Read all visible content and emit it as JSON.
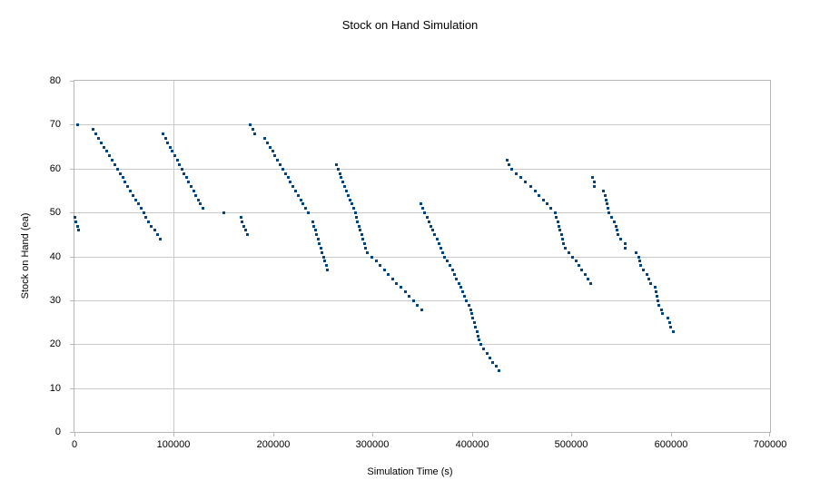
{
  "title": "Stock on Hand Simulation",
  "colors": {
    "background": "#ffffff",
    "point": "#004586",
    "gridline": "#c9c9c9",
    "axis": "#b7b7b7",
    "text": "#000000"
  },
  "chart_data": {
    "type": "scatter",
    "title": "Stock on Hand Simulation",
    "xlabel": "Simulation Time (s)",
    "ylabel": "Stock on Hand (ea)",
    "xlim": [
      0,
      700000
    ],
    "ylim": [
      0,
      80
    ],
    "x_ticks": [
      0,
      100000,
      200000,
      300000,
      400000,
      500000,
      600000,
      700000
    ],
    "y_ticks": [
      0,
      10,
      20,
      30,
      40,
      50,
      60,
      70,
      80
    ],
    "grid": "horizontal major gridlines every 10; faint vertical line at x=100000; plot area framed",
    "legend": "none",
    "marker": "small square, points only, no connecting lines",
    "vlines": [
      100000
    ],
    "series": [
      {
        "name": "Stock on Hand",
        "points": [
          [
            0,
            49
          ],
          [
            900,
            48
          ],
          [
            2300,
            47
          ],
          [
            2700,
            70
          ],
          [
            3700,
            46
          ],
          [
            18300,
            69
          ],
          [
            21000,
            68
          ],
          [
            23700,
            67
          ],
          [
            26400,
            66
          ],
          [
            29100,
            65
          ],
          [
            31800,
            64
          ],
          [
            34500,
            63
          ],
          [
            37200,
            62
          ],
          [
            39900,
            61
          ],
          [
            42600,
            60
          ],
          [
            45300,
            59
          ],
          [
            48000,
            58
          ],
          [
            50700,
            57
          ],
          [
            53400,
            56
          ],
          [
            56100,
            55
          ],
          [
            58800,
            54
          ],
          [
            61500,
            53
          ],
          [
            64200,
            52
          ],
          [
            66900,
            51
          ],
          [
            69600,
            50
          ],
          [
            71300,
            49
          ],
          [
            74200,
            48
          ],
          [
            77100,
            47
          ],
          [
            80000,
            46
          ],
          [
            82900,
            45
          ],
          [
            85800,
            44
          ],
          [
            88900,
            68
          ],
          [
            91200,
            67
          ],
          [
            93600,
            66
          ],
          [
            95900,
            65
          ],
          [
            98200,
            64
          ],
          [
            100600,
            63
          ],
          [
            102900,
            62
          ],
          [
            105300,
            61
          ],
          [
            107600,
            60
          ],
          [
            109900,
            59
          ],
          [
            112300,
            58
          ],
          [
            114600,
            57
          ],
          [
            117000,
            56
          ],
          [
            119300,
            55
          ],
          [
            121600,
            54
          ],
          [
            124000,
            53
          ],
          [
            126300,
            52
          ],
          [
            128600,
            51
          ],
          [
            149900,
            50
          ],
          [
            166900,
            49
          ],
          [
            168400,
            48
          ],
          [
            170000,
            47
          ],
          [
            172100,
            46
          ],
          [
            173900,
            45
          ],
          [
            176100,
            70
          ],
          [
            178700,
            69
          ],
          [
            181200,
            68
          ],
          [
            191300,
            67
          ],
          [
            193900,
            66
          ],
          [
            196400,
            65
          ],
          [
            199000,
            64
          ],
          [
            201500,
            63
          ],
          [
            204100,
            62
          ],
          [
            206700,
            61
          ],
          [
            209200,
            60
          ],
          [
            211800,
            59
          ],
          [
            214300,
            58
          ],
          [
            216900,
            57
          ],
          [
            219500,
            56
          ],
          [
            222000,
            55
          ],
          [
            224600,
            54
          ],
          [
            227100,
            53
          ],
          [
            229700,
            52
          ],
          [
            232300,
            51
          ],
          [
            234800,
            50
          ],
          [
            239100,
            48
          ],
          [
            240500,
            47
          ],
          [
            241900,
            46
          ],
          [
            243200,
            45
          ],
          [
            244600,
            44
          ],
          [
            246000,
            43
          ],
          [
            247400,
            42
          ],
          [
            248800,
            41
          ],
          [
            250100,
            40
          ],
          [
            251500,
            39
          ],
          [
            252900,
            38
          ],
          [
            254300,
            37
          ],
          [
            262900,
            61
          ],
          [
            264700,
            60
          ],
          [
            266400,
            59
          ],
          [
            268200,
            58
          ],
          [
            270000,
            57
          ],
          [
            271700,
            56
          ],
          [
            273500,
            55
          ],
          [
            275300,
            54
          ],
          [
            277000,
            53
          ],
          [
            278800,
            52
          ],
          [
            280600,
            51
          ],
          [
            282400,
            50
          ],
          [
            283000,
            49
          ],
          [
            284400,
            48
          ],
          [
            285800,
            47
          ],
          [
            287100,
            46
          ],
          [
            288500,
            45
          ],
          [
            289900,
            44
          ],
          [
            291200,
            43
          ],
          [
            292600,
            42
          ],
          [
            294000,
            41
          ],
          [
            299100,
            40
          ],
          [
            303200,
            39
          ],
          [
            307400,
            38
          ],
          [
            311500,
            37
          ],
          [
            315700,
            36
          ],
          [
            319800,
            35
          ],
          [
            323900,
            34
          ],
          [
            328100,
            33
          ],
          [
            332200,
            32
          ],
          [
            336400,
            31
          ],
          [
            340500,
            30
          ],
          [
            344600,
            29
          ],
          [
            348800,
            28
          ],
          [
            348200,
            52
          ],
          [
            350200,
            51
          ],
          [
            352200,
            50
          ],
          [
            354200,
            49
          ],
          [
            356200,
            48
          ],
          [
            358200,
            47
          ],
          [
            360200,
            46
          ],
          [
            362200,
            45
          ],
          [
            364200,
            44
          ],
          [
            366200,
            43
          ],
          [
            368200,
            42
          ],
          [
            370200,
            41
          ],
          [
            372200,
            40
          ],
          [
            374700,
            39
          ],
          [
            377200,
            38
          ],
          [
            379700,
            37
          ],
          [
            382200,
            36
          ],
          [
            384200,
            35
          ],
          [
            386200,
            34
          ],
          [
            388200,
            33
          ],
          [
            390200,
            32
          ],
          [
            392200,
            31
          ],
          [
            394200,
            30
          ],
          [
            396200,
            29
          ],
          [
            398100,
            28
          ],
          [
            399400,
            27
          ],
          [
            400700,
            26
          ],
          [
            401900,
            25
          ],
          [
            403200,
            24
          ],
          [
            404500,
            23
          ],
          [
            405700,
            22
          ],
          [
            407000,
            21
          ],
          [
            408200,
            20
          ],
          [
            411300,
            19
          ],
          [
            414500,
            18
          ],
          [
            417600,
            17
          ],
          [
            420700,
            16
          ],
          [
            423900,
            15
          ],
          [
            427000,
            14
          ],
          [
            434600,
            62
          ],
          [
            437200,
            61
          ],
          [
            439800,
            60
          ],
          [
            444400,
            59
          ],
          [
            449100,
            58
          ],
          [
            453700,
            57
          ],
          [
            458400,
            56
          ],
          [
            463000,
            55
          ],
          [
            467100,
            54
          ],
          [
            471200,
            53
          ],
          [
            475200,
            52
          ],
          [
            479300,
            51
          ],
          [
            483400,
            50
          ],
          [
            484600,
            49
          ],
          [
            485900,
            48
          ],
          [
            487100,
            47
          ],
          [
            488300,
            46
          ],
          [
            489500,
            45
          ],
          [
            490800,
            44
          ],
          [
            492000,
            43
          ],
          [
            493200,
            42
          ],
          [
            497100,
            41
          ],
          [
            501100,
            40
          ],
          [
            504200,
            39
          ],
          [
            507200,
            38
          ],
          [
            510300,
            37
          ],
          [
            513300,
            36
          ],
          [
            516400,
            35
          ],
          [
            519400,
            34
          ],
          [
            520600,
            58
          ],
          [
            522500,
            57
          ],
          [
            523100,
            56
          ],
          [
            531600,
            55
          ],
          [
            533700,
            54
          ],
          [
            534600,
            53
          ],
          [
            535800,
            52
          ],
          [
            536700,
            51
          ],
          [
            537600,
            50
          ],
          [
            539800,
            49
          ],
          [
            542800,
            48
          ],
          [
            544900,
            47
          ],
          [
            545800,
            46
          ],
          [
            546700,
            45
          ],
          [
            548900,
            44
          ],
          [
            553500,
            43
          ],
          [
            554100,
            42
          ],
          [
            565000,
            41
          ],
          [
            567200,
            40
          ],
          [
            568700,
            39
          ],
          [
            569300,
            38
          ],
          [
            571800,
            37
          ],
          [
            575800,
            36
          ],
          [
            577900,
            35
          ],
          [
            579400,
            34
          ],
          [
            584000,
            33
          ],
          [
            584900,
            32
          ],
          [
            586100,
            31
          ],
          [
            587000,
            30
          ],
          [
            587900,
            29
          ],
          [
            590100,
            28
          ],
          [
            591600,
            27
          ],
          [
            597000,
            26
          ],
          [
            598300,
            25
          ],
          [
            599200,
            24
          ],
          [
            602200,
            23
          ]
        ]
      }
    ]
  }
}
